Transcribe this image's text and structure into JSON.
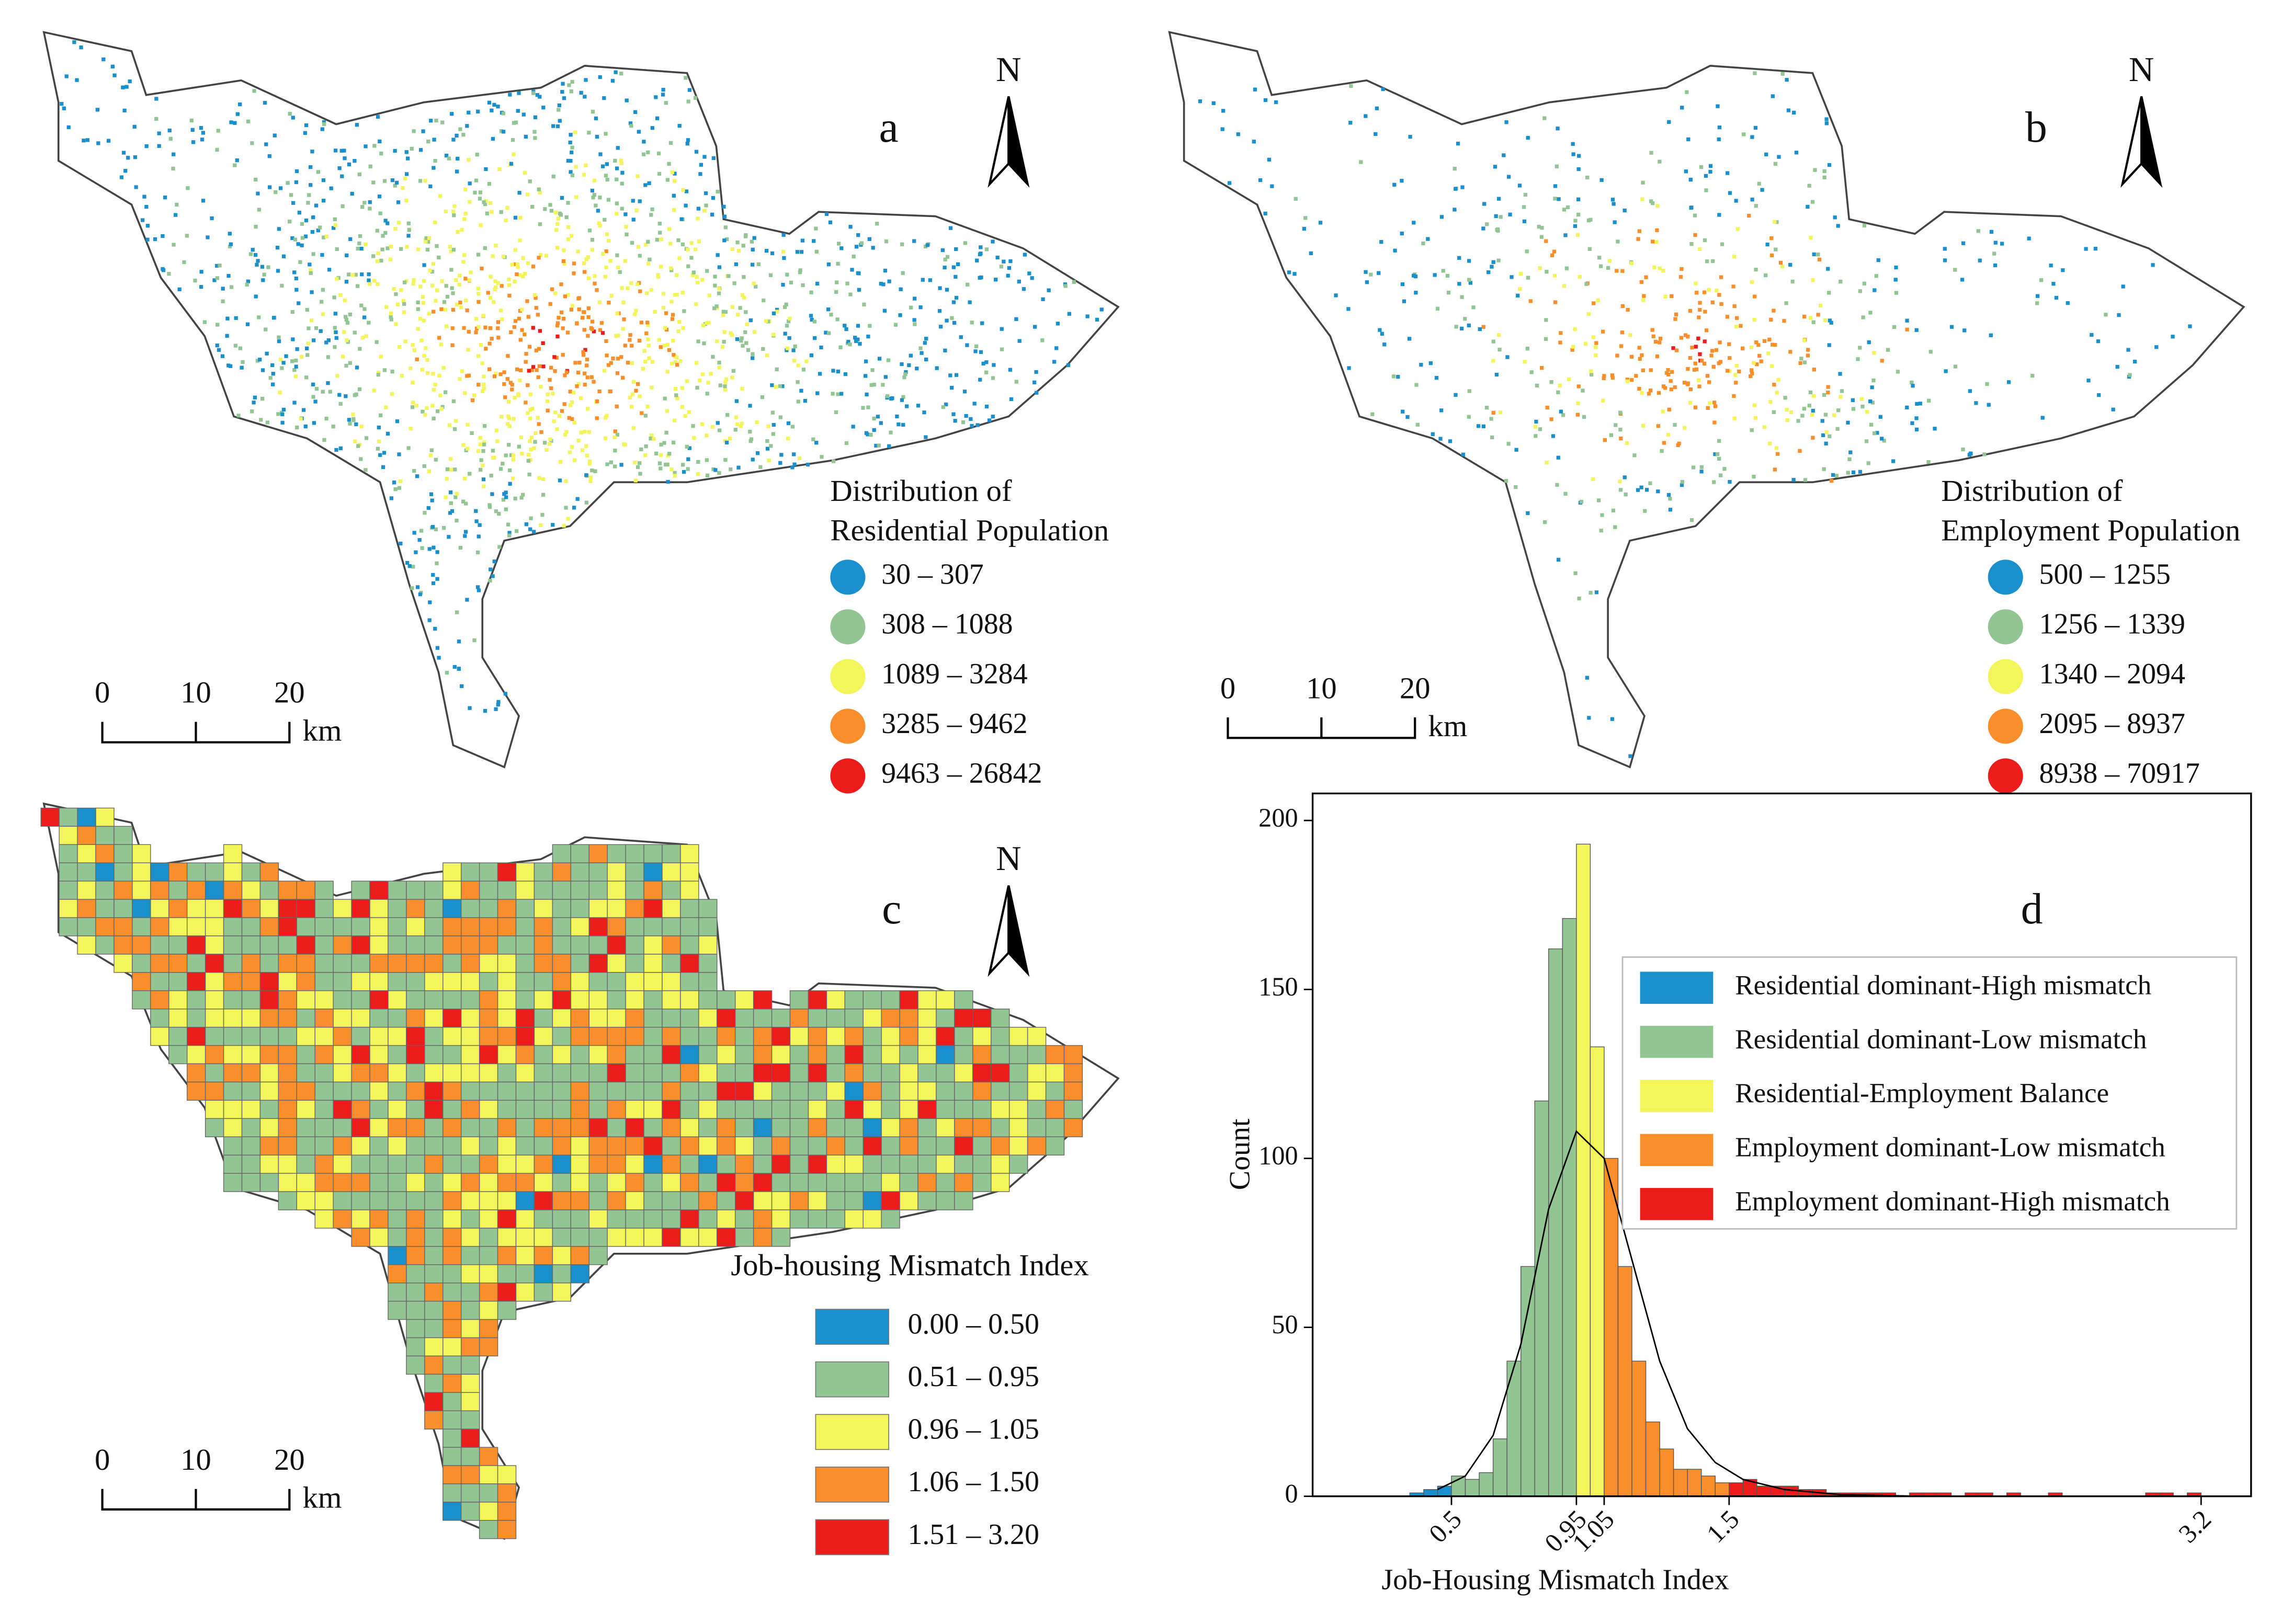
{
  "panels": [
    {
      "label": "a",
      "north": "N",
      "scale": {
        "ticks": [
          "0",
          "10",
          "20"
        ],
        "unit": "km"
      },
      "legend": {
        "title": [
          "Distribution of",
          "Residential Population"
        ],
        "items": [
          {
            "label": "30 – 307",
            "color": "#1b8fcb"
          },
          {
            "label": "308 – 1088",
            "color": "#93c594"
          },
          {
            "label": "1089 – 3284",
            "color": "#f4f55a"
          },
          {
            "label": "3285 – 9462",
            "color": "#f98e2a"
          },
          {
            "label": "9463 – 26842",
            "color": "#ed1c1c"
          }
        ]
      }
    },
    {
      "label": "b",
      "north": "N",
      "scale": {
        "ticks": [
          "0",
          "10",
          "20"
        ],
        "unit": "km"
      },
      "legend": {
        "title": [
          "Distribution of",
          "Employment Population"
        ],
        "items": [
          {
            "label": "500 – 1255",
            "color": "#1b8fcb"
          },
          {
            "label": "1256 – 1339",
            "color": "#93c594"
          },
          {
            "label": "1340 – 2094",
            "color": "#f4f55a"
          },
          {
            "label": "2095 – 8937",
            "color": "#f98e2a"
          },
          {
            "label": "8938 – 70917",
            "color": "#ed1c1c"
          }
        ]
      }
    },
    {
      "label": "c",
      "north": "N",
      "scale": {
        "ticks": [
          "0",
          "10",
          "20"
        ],
        "unit": "km"
      },
      "legend": {
        "title": [
          "Job-housing Mismatch Index"
        ],
        "items": [
          {
            "label": "0.00 – 0.50",
            "color": "#1b8fcb"
          },
          {
            "label": "0.51 – 0.95",
            "color": "#93c594"
          },
          {
            "label": "0.96 – 1.05",
            "color": "#f4f55a"
          },
          {
            "label": "1.06 – 1.50",
            "color": "#f98e2a"
          },
          {
            "label": "1.51 – 3.20",
            "color": "#ed1c1c"
          }
        ]
      }
    }
  ],
  "chart_data": {
    "type": "histogram",
    "label": "d",
    "xlabel": "Job-Housing Mismatch Index",
    "ylabel": "Count",
    "xlim": [
      0,
      3.38
    ],
    "ylim": [
      0,
      208
    ],
    "xticks": [
      0.5,
      0.95,
      1.05,
      1.5,
      3.2
    ],
    "yticks": [
      0,
      50,
      100,
      150,
      200
    ],
    "legend": "upper right",
    "series": [
      {
        "name": "Residential dominant-High mismatch",
        "color": "#1b8fcb",
        "bins": [
          0.35,
          0.4,
          0.45,
          0.5
        ],
        "values": [
          1,
          2,
          3
        ]
      },
      {
        "name": "Residential dominant-Low mismatch",
        "color": "#93c594",
        "bins": [
          0.5,
          0.55,
          0.6,
          0.65,
          0.7,
          0.75,
          0.8,
          0.85,
          0.9,
          0.95
        ],
        "values": [
          6,
          5,
          7,
          17,
          40,
          68,
          117,
          162,
          171
        ]
      },
      {
        "name": "Residential-Employment Balance",
        "color": "#f4f55a",
        "bins": [
          0.95,
          1.0,
          1.05
        ],
        "values": [
          193,
          133
        ]
      },
      {
        "name": "Employment dominant-Low mismatch",
        "color": "#f98e2a",
        "bins": [
          1.05,
          1.1,
          1.15,
          1.2,
          1.25,
          1.3,
          1.35,
          1.4,
          1.45,
          1.5
        ],
        "values": [
          100,
          68,
          40,
          22,
          14,
          8,
          8,
          6,
          4
        ]
      },
      {
        "name": "Employment dominant-High mismatch",
        "color": "#ed1c1c",
        "bins": [
          1.5,
          1.55,
          1.6,
          1.65,
          1.7,
          1.75,
          1.8,
          1.85,
          1.9,
          1.95,
          2.0,
          2.05,
          2.1,
          2.15,
          2.2,
          2.25,
          2.3,
          2.35,
          2.4,
          2.45,
          2.5,
          2.55,
          2.6,
          2.65,
          2.7,
          2.75,
          2.8,
          2.85,
          2.9,
          2.95,
          3.0,
          3.05,
          3.1,
          3.15,
          3.2
        ],
        "values": [
          4,
          5,
          3,
          3,
          3,
          2,
          2,
          1,
          1,
          1,
          1,
          1,
          0,
          1,
          1,
          1,
          0,
          1,
          1,
          0,
          1,
          0,
          0,
          1,
          0,
          0,
          0,
          0,
          0,
          0,
          1,
          1,
          0,
          1
        ]
      }
    ],
    "fit": {
      "x": [
        0.45,
        0.55,
        0.65,
        0.75,
        0.85,
        0.95,
        1.05,
        1.15,
        1.25,
        1.35,
        1.45,
        1.55,
        1.7,
        1.9,
        2.2
      ],
      "values": [
        2,
        6,
        18,
        45,
        85,
        108,
        100,
        70,
        40,
        20,
        10,
        5,
        2,
        0.5,
        0
      ]
    }
  }
}
